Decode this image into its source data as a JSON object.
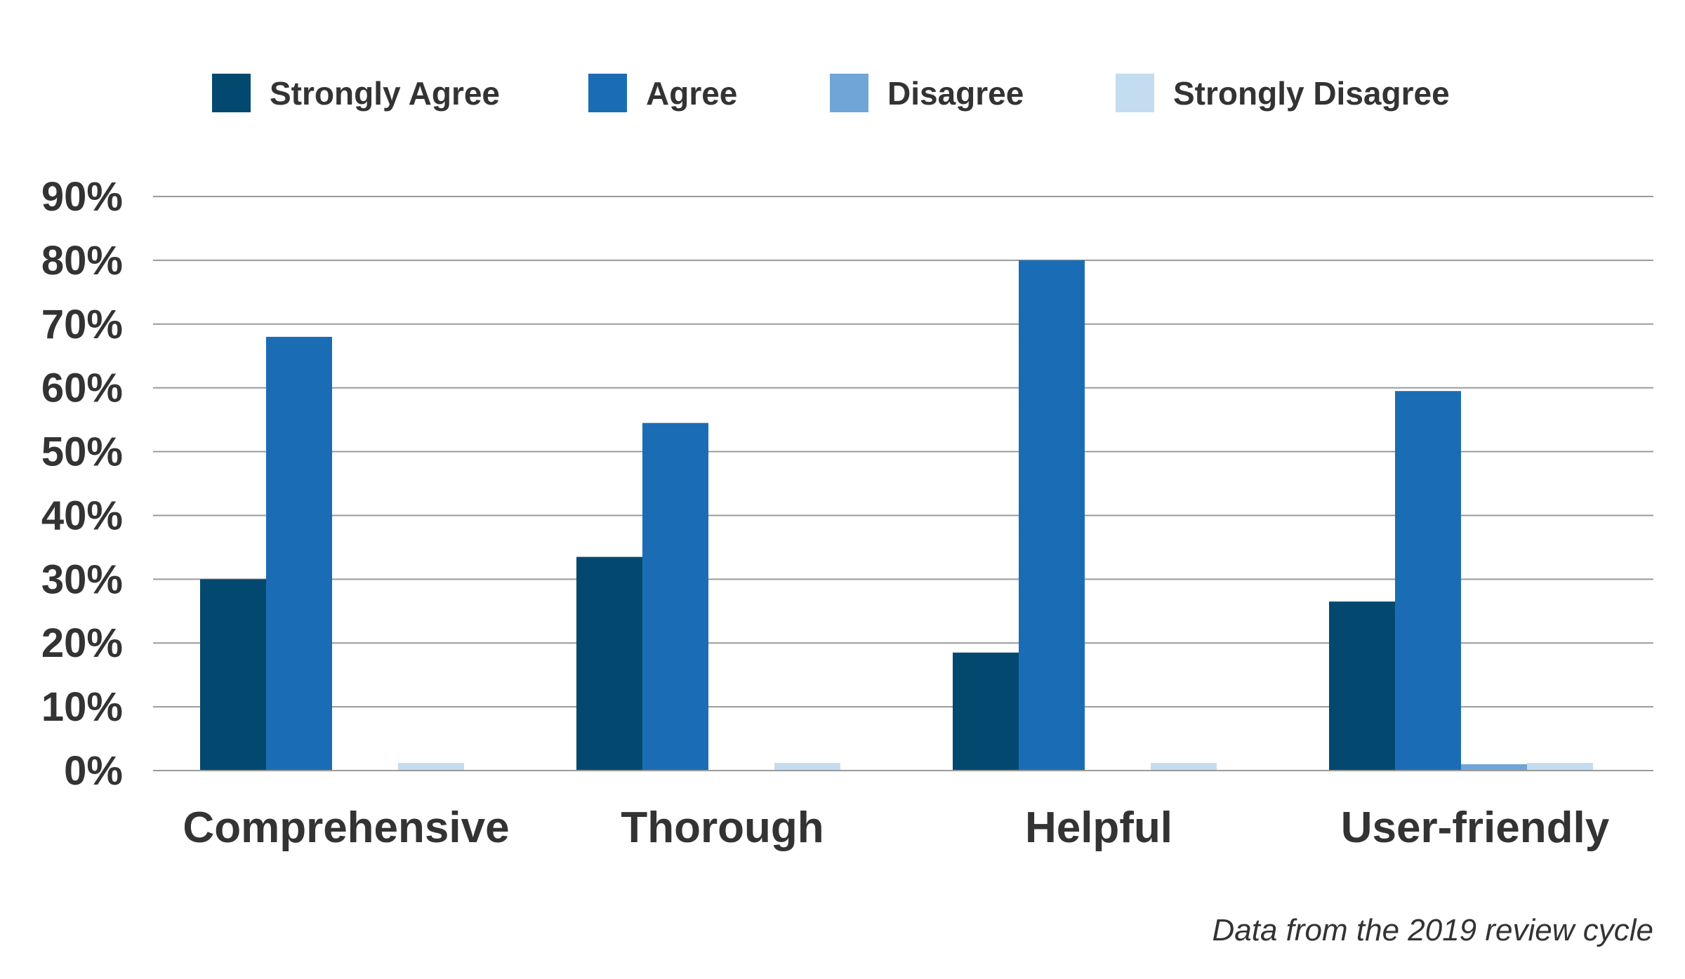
{
  "chart_data": {
    "type": "bar",
    "title": "",
    "xlabel": "",
    "ylabel": "",
    "categories": [
      "Comprehensive",
      "Thorough",
      "Helpful",
      "User-friendly"
    ],
    "series": [
      {
        "name": "Strongly Agree",
        "color": "#03496f",
        "values": [
          30,
          33.5,
          18.5,
          26.5
        ]
      },
      {
        "name": "Agree",
        "color": "#1a6db5",
        "values": [
          68,
          54.5,
          80,
          59.5
        ]
      },
      {
        "name": "Disagree",
        "color": "#6fa6d7",
        "values": [
          0,
          0,
          0,
          1
        ]
      },
      {
        "name": "Strongly Disagree",
        "color": "#c4dcf0",
        "values": [
          1.2,
          1.2,
          1.2,
          1.2
        ]
      }
    ],
    "ylim": [
      0,
      90
    ],
    "yticks": [
      0,
      10,
      20,
      30,
      40,
      50,
      60,
      70,
      80,
      90
    ],
    "ytick_labels": [
      "0%",
      "10%",
      "20%",
      "30%",
      "40%",
      "50%",
      "60%",
      "70%",
      "80%",
      "90%"
    ],
    "grid": true,
    "legend_position": "top-center"
  },
  "footnote": "Data from the 2019 review cycle"
}
